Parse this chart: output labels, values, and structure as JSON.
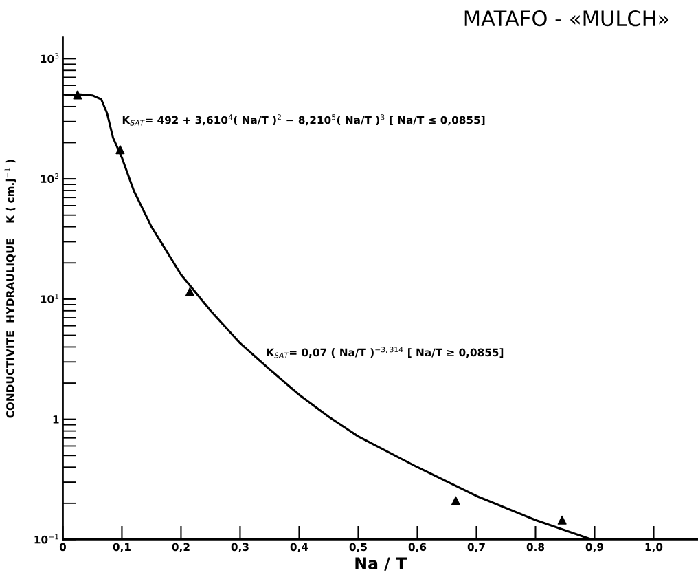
{
  "chart_data": {
    "type": "line",
    "title": "MATAFO - «MULCH»",
    "xlabel": "Na / T",
    "ylabel": "CONDUCTIVITE  HYDRAULIQUE    K ( cm.j$^{−1}$ )",
    "log": "y",
    "grid": false,
    "xlim": [
      0,
      1.075
    ],
    "ylim": [
      0.1,
      1500
    ],
    "xticks": [
      {
        "value": 0,
        "label": "0"
      },
      {
        "value": 0.1,
        "label": "0,1"
      },
      {
        "value": 0.2,
        "label": "0,2"
      },
      {
        "value": 0.3,
        "label": "0,3"
      },
      {
        "value": 0.4,
        "label": "0,4"
      },
      {
        "value": 0.5,
        "label": "0,5"
      },
      {
        "value": 0.6,
        "label": "0,6"
      },
      {
        "value": 0.7,
        "label": "0,7"
      },
      {
        "value": 0.8,
        "label": "0.8"
      },
      {
        "value": 0.9,
        "label": "0,9"
      },
      {
        "value": 1.0,
        "label": "1,0"
      }
    ],
    "yticks": [
      {
        "value": 0.1,
        "label": "10$^{−1}$"
      },
      {
        "value": 1,
        "label": "1"
      },
      {
        "value": 10,
        "label": "10$^{1}$"
      },
      {
        "value": 100,
        "label": "10$^{2}$"
      },
      {
        "value": 1000,
        "label": "10$^{3}$"
      }
    ],
    "series": [
      {
        "color": "#000000",
        "marker": "none",
        "line_style": "solid",
        "x": [
          0.005,
          0.03,
          0.05,
          0.065,
          0.075,
          0.085,
          0.1,
          0.12,
          0.15,
          0.2,
          0.25,
          0.3,
          0.35,
          0.4,
          0.45,
          0.5,
          0.6,
          0.7,
          0.8,
          0.895
        ],
        "values": [
          500,
          505,
          495,
          460,
          350,
          220,
          150,
          80,
          40,
          16,
          8,
          4.3,
          2.6,
          1.6,
          1.05,
          0.72,
          0.4,
          0.23,
          0.145,
          0.1
        ]
      },
      {
        "type": "scatter",
        "color": "#000000",
        "marker": "triangle",
        "x": [
          0.025,
          0.097,
          0.215,
          0.665,
          0.845
        ],
        "values": [
          500,
          175,
          11.5,
          0.21,
          0.145
        ]
      }
    ],
    "annotations": [
      "K$_{SAT}$= 492 + 3,610$^{4}$( Na/T )$^{2}$ − 8,210$^{5}$( Na/T )$^{3}$ [ Na/T ≤ 0,0855]",
      "K$_{SAT}$= 0,07 ( Na/T )$^{−3,314}$ [ Na/T ≥ 0,0855]"
    ]
  }
}
